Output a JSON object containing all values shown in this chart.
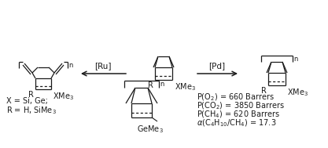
{
  "figsize": [
    4.17,
    1.89
  ],
  "dpi": 100,
  "bg_color": "#ffffff",
  "line_color": "#1a1a1a",
  "annotations": {
    "ru_label": "[Ru]",
    "pd_label": "[Pd]",
    "label_R_left": "R",
    "label_XMe3_left": "XMe$_3$",
    "label_R_mid": "R",
    "label_XMe3_mid": "XMe$_3$",
    "label_R_right": "R",
    "label_XMe3_right": "XMe$_3$",
    "label_n_left": "n",
    "label_n_mid": "",
    "label_n_right": "n",
    "label_n_bottom": "n",
    "legend_line1": "X = Si, Ge;",
    "legend_line2": "R = H, SiMe$_3$",
    "p_o2": "P(O$_2$) = 660 Barrers",
    "p_co2": "P(CO$_2$) = 3850 Barrers",
    "p_ch4": "P(CH$_4$) = 620 Barrers",
    "alpha": "$\\alpha$(C$_4$H$_{10}$/CH$_4$) = 17.3",
    "geme3": "GeMe$_3$"
  }
}
